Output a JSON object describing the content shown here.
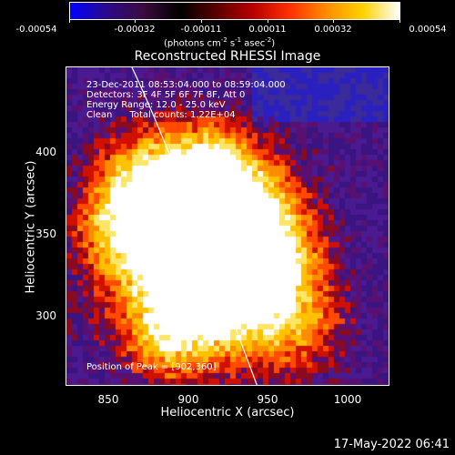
{
  "colorbar": {
    "gradient": [
      "#0000ff",
      "#2a0a8a",
      "#3b0c3f",
      "#000000",
      "#5a0000",
      "#b80000",
      "#ff3000",
      "#ff8c00",
      "#ffd200",
      "#ffffff"
    ],
    "tick_labels": [
      "-0.00054",
      "-0.00032",
      "-0.00011",
      "0.00011",
      "0.00032",
      "0.00054"
    ],
    "units_prefix": "(photons cm",
    "units_exp1": "-2",
    "units_mid1": " s",
    "units_exp2": "-1",
    "units_mid2": " asec",
    "units_exp3": "-2",
    "units_suffix": ")"
  },
  "image": {
    "title": "Reconstructed RHESSI Image",
    "info_line1": "23-Dec-2011 08:53:04.000 to 08:59:04.000",
    "info_line2": "Detectors: 3F 4F 5F 6F 7F 8F, Att 0",
    "info_line3": "Energy Range: 12.0 - 25.0 keV",
    "info_line4": "Clean      Total counts: 1.22E+04",
    "peak_label": "Position of Peak = [902,360]",
    "x_axis_label": "Heliocentric X (arcsec)",
    "y_axis_label": "Heliocentric Y (arcsec)",
    "x_ticks": [
      "850",
      "900",
      "950",
      "1000"
    ],
    "y_ticks": [
      "400",
      "350",
      "300"
    ],
    "datestamp": "17-May-2022 06:41"
  }
}
